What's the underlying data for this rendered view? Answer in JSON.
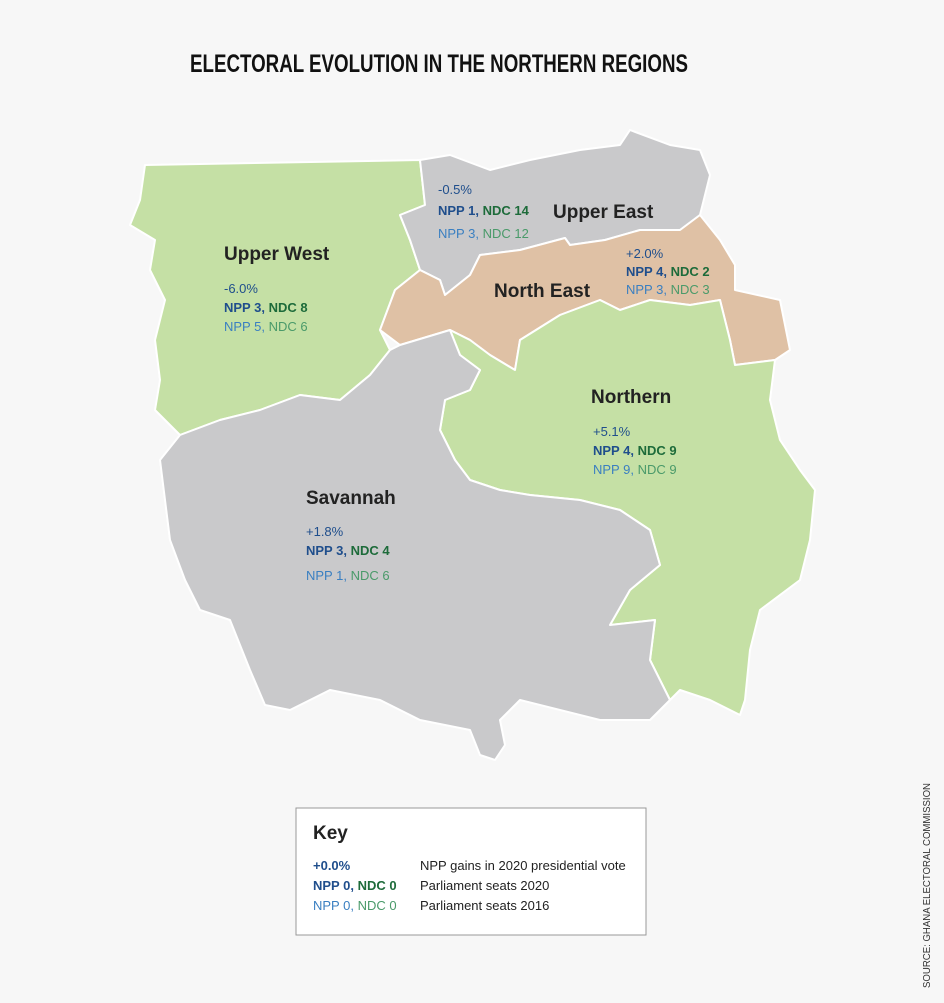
{
  "title": "ELECTORAL EVOLUTION IN THE NORTHERN REGIONS",
  "source": "SOURCE: GHANA ELECTORAL COMMISSION",
  "regions": [
    {
      "name": "Upper West",
      "change": "-6.0%",
      "seats_2020": {
        "npp": "NPP 3,",
        "ndc": "NDC 8"
      },
      "seats_2016": {
        "npp": "NPP 5,",
        "ndc": "NDC 6"
      }
    },
    {
      "name": "Upper East",
      "change": "-0.5%",
      "seats_2020": {
        "npp": "NPP 1,",
        "ndc": "NDC 14"
      },
      "seats_2016": {
        "npp": "NPP 3,",
        "ndc": "NDC 12"
      }
    },
    {
      "name": "North East",
      "change": "+2.0%",
      "seats_2020": {
        "npp": "NPP 4,",
        "ndc": "NDC 2"
      },
      "seats_2016": {
        "npp": "NPP 3,",
        "ndc": "NDC 3"
      }
    },
    {
      "name": "Northern",
      "change": "+5.1%",
      "seats_2020": {
        "npp": "NPP 4,",
        "ndc": "NDC 9"
      },
      "seats_2016": {
        "npp": "NPP 9,",
        "ndc": "NDC 9"
      }
    },
    {
      "name": "Savannah",
      "change": "+1.8%",
      "seats_2020": {
        "npp": "NPP 3,",
        "ndc": "NDC 4"
      },
      "seats_2016": {
        "npp": "NPP 1,",
        "ndc": "NDC 6"
      }
    }
  ],
  "key": {
    "title": "Key",
    "rows": [
      {
        "sample": "+0.0%",
        "description": "NPP gains in 2020 presidential vote"
      },
      {
        "npp": "NPP 0,",
        "ndc": "NDC 0",
        "description": "Parliament seats 2020"
      },
      {
        "npp": "NPP 0,",
        "ndc": "NDC 0",
        "description": "Parliament seats 2016"
      }
    ]
  }
}
